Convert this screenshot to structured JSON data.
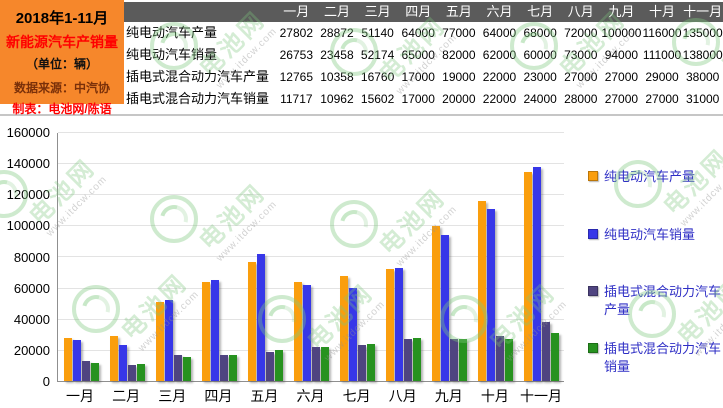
{
  "watermark": {
    "brand": "电池网",
    "url": "www.itdcw.com"
  },
  "info_box": {
    "title_line1": "2018年1-11月",
    "title_line2": "新能源汽车产销量",
    "unit_line": "（单位：辆）",
    "source_line": "数据来源：中汽协",
    "author_line": "制表：电池网/陈语",
    "bg_color": "#F6872B",
    "title2_color": "#FF0000",
    "source_color": "#7A3009",
    "author_color": "#FF0000"
  },
  "table": {
    "header_bg": "#5B5B5B",
    "header_text_color": "#FFFFFF",
    "months": [
      "一月",
      "二月",
      "三月",
      "四月",
      "五月",
      "六月",
      "七月",
      "八月",
      "九月",
      "十月",
      "十一月"
    ],
    "rows": [
      {
        "label": "纯电动汽车产量",
        "values": [
          27802,
          28872,
          51140,
          64000,
          77000,
          64000,
          68000,
          72000,
          100000,
          116000,
          135000
        ]
      },
      {
        "label": "纯电动汽车销量",
        "values": [
          26753,
          23458,
          52174,
          65000,
          82000,
          62000,
          60000,
          73000,
          94000,
          111000,
          138000
        ]
      },
      {
        "label": "插电式混合动力汽车产量",
        "values": [
          12765,
          10358,
          16760,
          17000,
          19000,
          22000,
          23000,
          27000,
          27000,
          29000,
          38000
        ]
      },
      {
        "label": "插电式混合动力汽车销量",
        "values": [
          11717,
          10962,
          15602,
          17000,
          20000,
          22000,
          24000,
          28000,
          27000,
          27000,
          31000
        ]
      }
    ]
  },
  "chart_data": {
    "type": "bar",
    "title": "",
    "xlabel": "",
    "ylabel": "",
    "categories": [
      "一月",
      "二月",
      "三月",
      "四月",
      "五月",
      "六月",
      "七月",
      "八月",
      "九月",
      "十月",
      "十一月"
    ],
    "series": [
      {
        "name": "纯电动汽车产量",
        "color": "#FA9E0D",
        "values": [
          27802,
          28872,
          51140,
          64000,
          77000,
          64000,
          68000,
          72000,
          100000,
          116000,
          135000
        ]
      },
      {
        "name": "纯电动汽车销量",
        "color": "#3737E8",
        "values": [
          26753,
          23458,
          52174,
          65000,
          82000,
          62000,
          60000,
          73000,
          94000,
          111000,
          138000
        ]
      },
      {
        "name": "插电式混合动力汽车产量",
        "color": "#4F4480",
        "values": [
          12765,
          10358,
          16760,
          17000,
          19000,
          22000,
          23000,
          27000,
          27000,
          29000,
          38000
        ]
      },
      {
        "name": "插电式混合动力汽车销量",
        "color": "#27921F",
        "values": [
          11717,
          10962,
          15602,
          17000,
          20000,
          22000,
          24000,
          28000,
          27000,
          27000,
          31000
        ]
      }
    ],
    "ylim": [
      0,
      160000
    ],
    "ytick_step": 20000,
    "yticks": [
      0,
      20000,
      40000,
      60000,
      80000,
      100000,
      120000,
      140000,
      160000
    ],
    "grid": true,
    "legend_position": "right",
    "legend_text_color": "#2F2FC5",
    "gridline_color": "#E3E3E3",
    "axis_color": "#8F8F8F"
  }
}
